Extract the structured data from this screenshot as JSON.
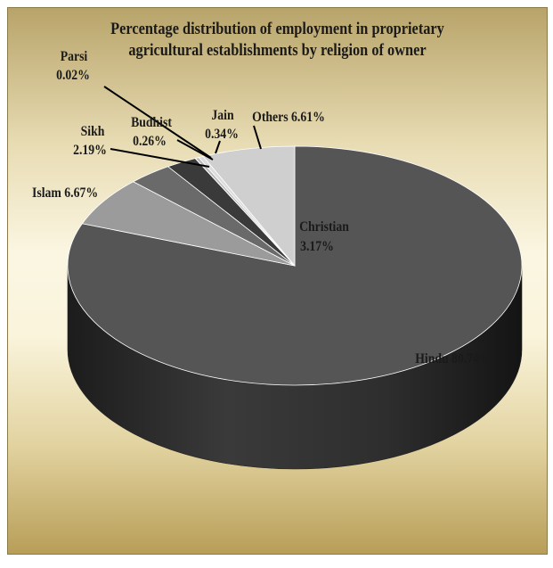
{
  "chart_data": {
    "type": "pie",
    "title": "Percentage distribution of employment in proprietary\nagricultural establishments by religion of owner",
    "slices": [
      {
        "label": "Hindu",
        "value": 80.74,
        "display": "80.74%",
        "color": "#555555"
      },
      {
        "label": "Islam",
        "value": 6.67,
        "display": "6.67%",
        "color": "#9b9b9b"
      },
      {
        "label": "Christian",
        "value": 3.17,
        "display": "3.17%",
        "color": "#6a6a6a"
      },
      {
        "label": "Sikh",
        "value": 2.19,
        "display": "2.19%",
        "color": "#3a3a3a"
      },
      {
        "label": "Parsi",
        "value": 0.02,
        "display": "0.02%",
        "color": "#808080"
      },
      {
        "label": "Budhist",
        "value": 0.26,
        "display": "0.26%",
        "color": "#bbbbbb"
      },
      {
        "label": "Jain",
        "value": 0.34,
        "display": "0.34%",
        "color": "#dddddd"
      },
      {
        "label": "Others",
        "value": 6.61,
        "display": "6.61%",
        "color": "#cfcfcf"
      }
    ]
  }
}
